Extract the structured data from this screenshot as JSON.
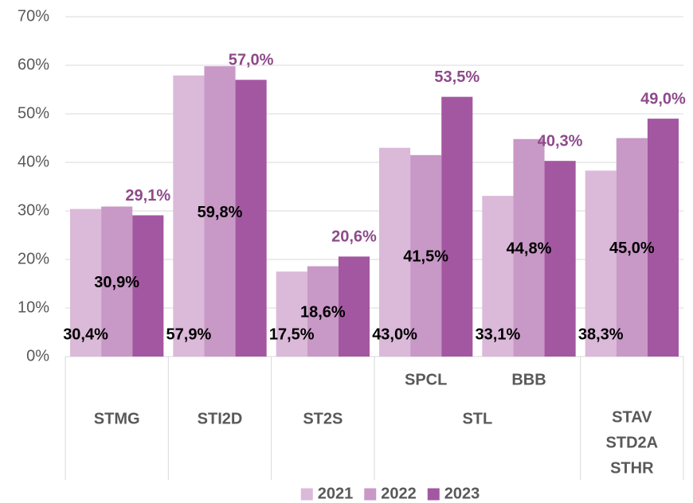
{
  "chart_data": {
    "type": "bar",
    "categories": [
      "STMG",
      "STI2D",
      "ST2S",
      "SPCL",
      "BBB",
      [
        "STAV",
        "STD2A",
        "STHR"
      ]
    ],
    "groups": [
      {
        "label": "STL",
        "from": 3,
        "to": 4
      }
    ],
    "series": [
      {
        "name": "2021",
        "color": "#dbb9d9",
        "label_color": "#000000",
        "label_position": "base",
        "values": [
          30.4,
          57.9,
          17.5,
          43.0,
          33.1,
          38.3
        ],
        "value_labels": [
          "30,4%",
          "57,9%",
          "17,5%",
          "43,0%",
          "33,1%",
          "38,3%"
        ]
      },
      {
        "name": "2022",
        "color": "#c898c6",
        "label_color": "#000000",
        "label_position": "center",
        "values": [
          30.9,
          59.8,
          18.6,
          41.5,
          44.8,
          45.0
        ],
        "value_labels": [
          "30,9%",
          "59,8%",
          "18,6%",
          "41,5%",
          "44,8%",
          "45,0%"
        ]
      },
      {
        "name": "2023",
        "color": "#a457a1",
        "label_color": "#8e4a8b",
        "label_position": "above",
        "values": [
          29.1,
          57.0,
          20.6,
          53.5,
          40.3,
          49.0
        ],
        "value_labels": [
          "29,1%",
          "57,0%",
          "20,6%",
          "53,5%",
          "40,3%",
          "49,0%"
        ]
      }
    ],
    "ylim": [
      0,
      70
    ],
    "yticks": [
      {
        "value": 0,
        "label": "0%"
      },
      {
        "value": 10,
        "label": "10%"
      },
      {
        "value": 20,
        "label": "20%"
      },
      {
        "value": 30,
        "label": "30%"
      },
      {
        "value": 40,
        "label": "40%"
      },
      {
        "value": 50,
        "label": "50%"
      },
      {
        "value": 60,
        "label": "60%"
      },
      {
        "value": 70,
        "label": "70%"
      }
    ],
    "grid": true,
    "legend": "bottom"
  }
}
